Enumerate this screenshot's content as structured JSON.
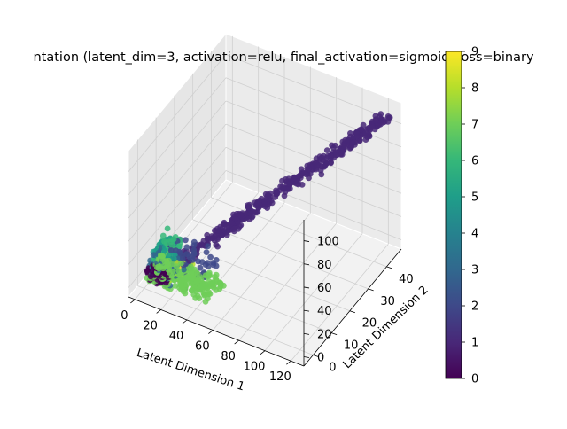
{
  "chart_data": {
    "type": "scatter",
    "projection": "3d",
    "title": "ntation (latent_dim=3, activation=relu, final_activation=sigmoid, loss=binary",
    "xlabel": "Latent Dimension 1",
    "ylabel": "Latent Dimension 2",
    "zlabel": "",
    "x_ticks": [
      "0",
      "20",
      "40",
      "60",
      "80",
      "100",
      "120"
    ],
    "y_ticks": [
      "0",
      "10",
      "20",
      "30",
      "40"
    ],
    "z_ticks": [
      "0",
      "20",
      "40",
      "60",
      "80",
      "100"
    ],
    "xlim": [
      -5,
      130
    ],
    "ylim": [
      -5,
      48
    ],
    "zlim": [
      -8,
      118
    ],
    "grid": true,
    "colormap": "viridis",
    "colorbar": {
      "min": 0,
      "max": 9,
      "ticks": [
        "0",
        "1",
        "2",
        "3",
        "4",
        "5",
        "6",
        "7",
        "8",
        "9"
      ],
      "placement": "right"
    },
    "class_colors": [
      "#440154",
      "#482878",
      "#3e4989",
      "#31688e",
      "#26828e",
      "#1f9e89",
      "#35b779",
      "#6ece58",
      "#b5de2b",
      "#fde725"
    ],
    "point_clouds": [
      {
        "class": 7,
        "count": 230,
        "x": [
          2,
          50
        ],
        "y": [
          0,
          9
        ],
        "z": [
          0,
          8
        ]
      },
      {
        "class": 0,
        "count": 90,
        "x": [
          2,
          15
        ],
        "y": [
          0,
          5
        ],
        "z": [
          0,
          8
        ]
      },
      {
        "class": 3,
        "count": 80,
        "x": [
          2,
          20
        ],
        "y": [
          0,
          8
        ],
        "z": [
          2,
          14
        ]
      },
      {
        "class": 2,
        "count": 80,
        "x": [
          5,
          40
        ],
        "y": [
          0,
          12
        ],
        "z": [
          5,
          22
        ]
      },
      {
        "class": 5,
        "count": 70,
        "x": [
          3,
          15
        ],
        "y": [
          2,
          10
        ],
        "z": [
          6,
          22
        ]
      },
      {
        "class": 6,
        "count": 50,
        "x": [
          3,
          12
        ],
        "y": [
          3,
          12
        ],
        "z": [
          10,
          24
        ]
      },
      {
        "class": 8,
        "count": 35,
        "x": [
          5,
          28
        ],
        "y": [
          0,
          8
        ],
        "z": [
          4,
          14
        ]
      },
      {
        "class": 9,
        "count": 15,
        "x": [
          10,
          25
        ],
        "y": [
          0,
          6
        ],
        "z": [
          8,
          14
        ]
      },
      {
        "class": 1,
        "count": 420,
        "x": [
          15,
          125
        ],
        "y": [
          3,
          44
        ],
        "z": [
          10,
          112
        ]
      }
    ]
  }
}
